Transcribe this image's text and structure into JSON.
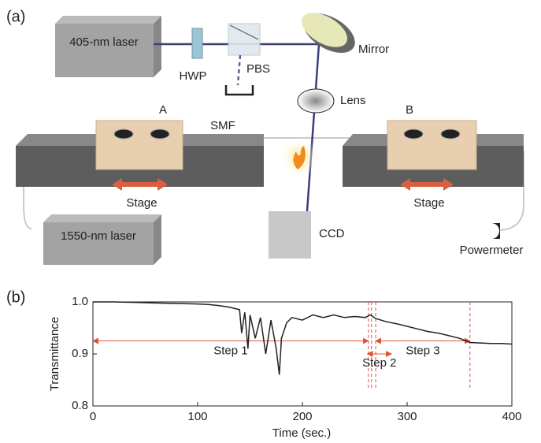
{
  "panel_a": {
    "panel_label": "(a)",
    "labels": {
      "laser405": "405-nm laser",
      "hwp": "HWP",
      "pbs": "PBS",
      "mirror": "Mirror",
      "lens": "Lens",
      "stage_a": "A",
      "stage_b": "B",
      "smf": "SMF",
      "stage_left": "Stage",
      "stage_right": "Stage",
      "laser1550": "1550-nm laser",
      "ccd": "CCD",
      "powermeter": "Powermeter"
    }
  },
  "chart_data": {
    "type": "line",
    "panel_label": "(b)",
    "x_label": "Time (sec.)",
    "y_label": "Transmittance",
    "x": [
      0,
      20,
      40,
      60,
      80,
      100,
      110,
      120,
      130,
      140,
      142,
      145,
      148,
      150,
      155,
      160,
      165,
      170,
      175,
      178,
      180,
      185,
      190,
      200,
      210,
      220,
      230,
      240,
      250,
      260,
      265,
      270,
      280,
      290,
      300,
      310,
      320,
      330,
      340,
      350,
      360,
      370,
      380,
      390,
      400
    ],
    "series": [
      {
        "name": "Transmittance",
        "color": "#222222",
        "values": [
          1,
          1,
          0.999,
          0.998,
          0.997,
          0.996,
          0.995,
          0.993,
          0.99,
          0.985,
          0.94,
          0.98,
          0.91,
          0.975,
          0.93,
          0.97,
          0.9,
          0.965,
          0.91,
          0.86,
          0.93,
          0.96,
          0.97,
          0.965,
          0.975,
          0.97,
          0.975,
          0.97,
          0.972,
          0.97,
          0.975,
          0.968,
          0.962,
          0.958,
          0.953,
          0.948,
          0.943,
          0.94,
          0.935,
          0.93,
          0.922,
          0.921,
          0.92,
          0.92,
          0.919
        ]
      }
    ],
    "xlim": [
      0,
      400
    ],
    "ylim": [
      0.8,
      1
    ],
    "xticks": [
      0,
      100,
      200,
      300,
      400
    ],
    "yticks": [
      0.8,
      0.9,
      {
        "value": 1,
        "label": "1.0"
      }
    ],
    "vlines": [
      263,
      266,
      270,
      360
    ],
    "vline_color": "#e0533a",
    "steps": [
      {
        "label": "Step 1",
        "start": 0,
        "end": 263,
        "level": 0.925
      },
      {
        "label": "Step 2",
        "start": 262,
        "end": 285,
        "level": 0.9
      },
      {
        "label": "Step 3",
        "start": 270,
        "end": 360,
        "level": 0.925
      }
    ]
  }
}
